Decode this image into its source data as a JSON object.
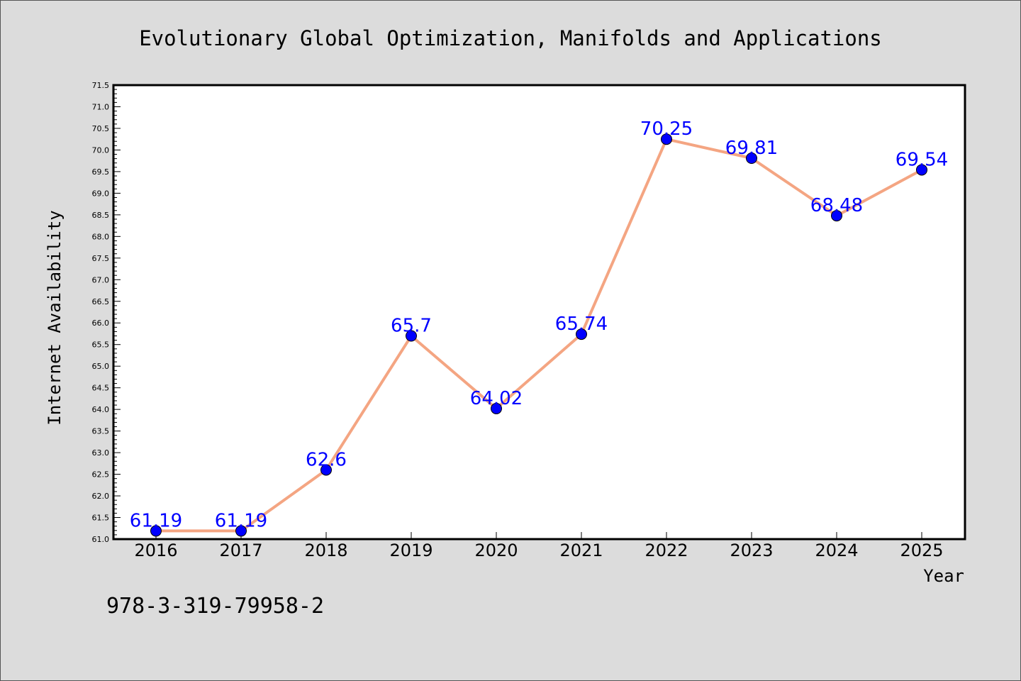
{
  "chart_data": {
    "type": "line",
    "title": "Evolutionary Global Optimization, Manifolds and Applications",
    "xlabel": "Year",
    "ylabel": "Internet Availability",
    "x": [
      "2016",
      "2017",
      "2018",
      "2019",
      "2020",
      "2021",
      "2022",
      "2023",
      "2024",
      "2025"
    ],
    "series": [
      {
        "values": [
          61.19,
          61.19,
          62.6,
          65.7,
          64.02,
          65.74,
          70.25,
          69.81,
          68.48,
          69.54
        ]
      }
    ],
    "data_labels": [
      "61.19",
      "61.19",
      "62.6",
      "65.7",
      "64.02",
      "65.74",
      "70.25",
      "69.81",
      "68.48",
      "69.54"
    ],
    "ylim": [
      61.0,
      71.5
    ],
    "yticks": [
      "61.0",
      "61.5",
      "62.0",
      "62.5",
      "63.0",
      "63.5",
      "64.0",
      "64.5",
      "65.0",
      "65.5",
      "66.0",
      "66.5",
      "67.0",
      "67.5",
      "68.0",
      "68.5",
      "69.0",
      "69.5",
      "70.0",
      "70.5",
      "71.0",
      "71.5"
    ],
    "grid": false,
    "line_color": "#f4a582",
    "marker_color": "#0000ff",
    "label_color": "#0000ff"
  },
  "footer": {
    "isbn": "978-3-319-79958-2"
  }
}
